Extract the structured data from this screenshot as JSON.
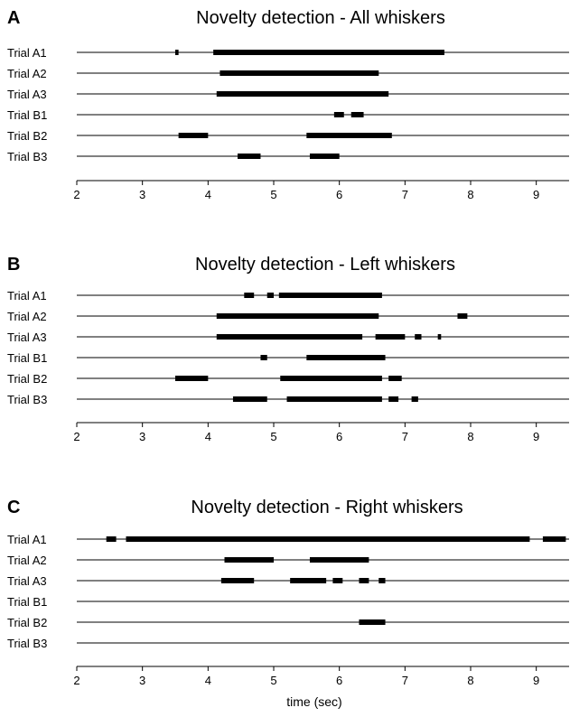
{
  "chart_data": [
    {
      "type": "timeline",
      "letter": "A",
      "title": "Novelty detection - All whiskers",
      "xlabel": "",
      "xlim": [
        2,
        9.5
      ],
      "xticks": [
        2,
        3,
        4,
        5,
        6,
        7,
        8,
        9
      ],
      "rows": [
        {
          "label": "Trial A1",
          "segments": [
            [
              3.5,
              3.55
            ],
            [
              4.08,
              7.6
            ]
          ]
        },
        {
          "label": "Trial A2",
          "segments": [
            [
              4.18,
              6.6
            ]
          ]
        },
        {
          "label": "Trial A3",
          "segments": [
            [
              4.13,
              6.75
            ]
          ]
        },
        {
          "label": "Trial B1",
          "segments": [
            [
              5.92,
              6.07
            ],
            [
              6.18,
              6.37
            ]
          ]
        },
        {
          "label": "Trial B2",
          "segments": [
            [
              3.55,
              4.0
            ],
            [
              5.5,
              6.8
            ]
          ]
        },
        {
          "label": "Trial B3",
          "segments": [
            [
              4.45,
              4.8
            ],
            [
              5.55,
              6.0
            ]
          ]
        }
      ]
    },
    {
      "type": "timeline",
      "letter": "B",
      "title": "Novelty detection - Left whiskers",
      "xlabel": "",
      "xlim": [
        2,
        9.5
      ],
      "xticks": [
        2,
        3,
        4,
        5,
        6,
        7,
        8,
        9
      ],
      "rows": [
        {
          "label": "Trial A1",
          "segments": [
            [
              4.55,
              4.7
            ],
            [
              4.9,
              5.0
            ],
            [
              5.08,
              6.65
            ]
          ]
        },
        {
          "label": "Trial A2",
          "segments": [
            [
              4.13,
              6.6
            ],
            [
              7.8,
              7.95
            ]
          ]
        },
        {
          "label": "Trial A3",
          "segments": [
            [
              4.13,
              6.35
            ],
            [
              6.55,
              7.0
            ],
            [
              7.15,
              7.25
            ],
            [
              7.5,
              7.55
            ]
          ]
        },
        {
          "label": "Trial B1",
          "segments": [
            [
              4.8,
              4.9
            ],
            [
              5.5,
              6.7
            ]
          ]
        },
        {
          "label": "Trial B2",
          "segments": [
            [
              3.5,
              4.0
            ],
            [
              5.1,
              6.65
            ],
            [
              6.75,
              6.95
            ]
          ]
        },
        {
          "label": "Trial B3",
          "segments": [
            [
              4.38,
              4.9
            ],
            [
              5.2,
              6.65
            ],
            [
              6.75,
              6.9
            ],
            [
              7.1,
              7.2
            ]
          ]
        }
      ]
    },
    {
      "type": "timeline",
      "letter": "C",
      "title": "Novelty detection - Right whiskers",
      "xlabel": "time (sec)",
      "xlim": [
        2,
        9.5
      ],
      "xticks": [
        2,
        3,
        4,
        5,
        6,
        7,
        8,
        9
      ],
      "rows": [
        {
          "label": "Trial A1",
          "segments": [
            [
              2.45,
              2.6
            ],
            [
              2.75,
              8.9
            ],
            [
              9.1,
              9.45
            ]
          ]
        },
        {
          "label": "Trial A2",
          "segments": [
            [
              4.25,
              5.0
            ],
            [
              5.55,
              6.45
            ]
          ]
        },
        {
          "label": "Trial A3",
          "segments": [
            [
              4.2,
              4.7
            ],
            [
              5.25,
              5.8
            ],
            [
              5.9,
              6.05
            ],
            [
              6.3,
              6.45
            ],
            [
              6.6,
              6.7
            ]
          ]
        },
        {
          "label": "Trial B1",
          "segments": []
        },
        {
          "label": "Trial B2",
          "segments": [
            [
              6.3,
              6.7
            ]
          ]
        },
        {
          "label": "Trial B3",
          "segments": []
        }
      ]
    }
  ]
}
